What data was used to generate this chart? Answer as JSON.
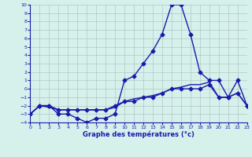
{
  "xlabel": "Graphe des températures (°c)",
  "ylim": [
    -4,
    10
  ],
  "xlim": [
    0,
    23
  ],
  "yticks": [
    -4,
    -3,
    -2,
    -1,
    0,
    1,
    2,
    3,
    4,
    5,
    6,
    7,
    8,
    9,
    10
  ],
  "xticks": [
    0,
    1,
    2,
    3,
    4,
    5,
    6,
    7,
    8,
    9,
    10,
    11,
    12,
    13,
    14,
    15,
    16,
    17,
    18,
    19,
    20,
    21,
    22,
    23
  ],
  "bg_color": "#d6f0ec",
  "grid_color": "#b0c8c4",
  "line_color": "#1a1aaa",
  "line1_x": [
    0,
    1,
    2,
    3,
    4,
    5,
    6,
    7,
    8,
    9,
    10,
    11,
    12,
    13,
    14,
    15,
    16,
    17,
    18,
    19,
    20,
    21,
    22,
    23
  ],
  "line1_y": [
    -3,
    -2,
    -2,
    -3,
    -3,
    -3.5,
    -4,
    -3.5,
    -3.5,
    -3,
    1,
    1.5,
    3,
    4.5,
    6.5,
    10,
    10,
    6.5,
    2,
    1,
    1,
    -1,
    1,
    -2
  ],
  "line2_x": [
    0,
    1,
    2,
    3,
    4,
    5,
    6,
    7,
    8,
    9,
    10,
    11,
    12,
    13,
    14,
    15,
    16,
    17,
    18,
    19,
    20,
    21,
    22,
    23
  ],
  "line2_y": [
    -3,
    -2,
    -2,
    -2.5,
    -2.5,
    -2.5,
    -2.5,
    -2.5,
    -2.5,
    -2,
    -1.5,
    -1.5,
    -1,
    -1,
    -0.5,
    0,
    0,
    0,
    0,
    0.5,
    -1,
    -1,
    -0.5,
    -2
  ],
  "line3_x": [
    0,
    1,
    2,
    3,
    4,
    5,
    6,
    7,
    8,
    9,
    10,
    11,
    12,
    13,
    14,
    15,
    16,
    17,
    18,
    19,
    20,
    21,
    22,
    23
  ],
  "line3_y": [
    -3,
    -2,
    -2.2,
    -2.5,
    -2.5,
    -2.5,
    -2.5,
    -2.5,
    -2.5,
    -2.2,
    -1.5,
    -1.2,
    -1,
    -0.8,
    -0.5,
    0,
    0.2,
    0.5,
    0.5,
    0.8,
    -1,
    -1,
    -0.5,
    -2
  ],
  "marker": "D",
  "markersize": 2.5,
  "linewidth": 1.0
}
